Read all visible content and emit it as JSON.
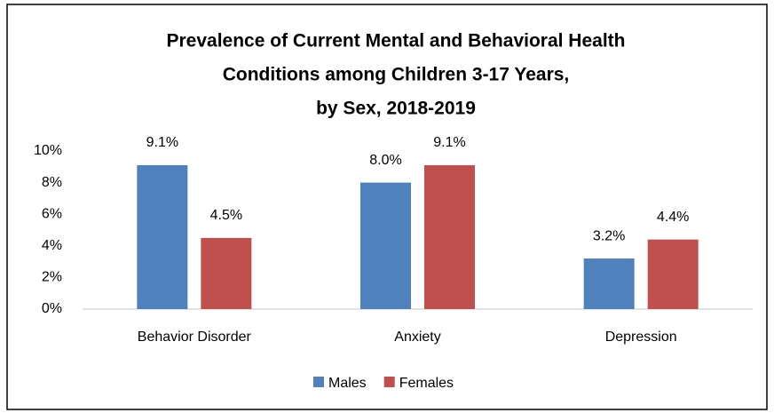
{
  "chart_data": {
    "type": "bar",
    "title": [
      "Prevalence of Current Mental and Behavioral Health",
      "Conditions among Children 3-17 Years,",
      "by Sex, 2018-2019"
    ],
    "categories": [
      "Behavior Disorder",
      "Anxiety",
      "Depression"
    ],
    "series": [
      {
        "name": "Males",
        "color": "#4f81bd",
        "values": [
          9.1,
          8.0,
          3.2
        ],
        "value_labels": [
          "9.1%",
          "8.0%",
          "3.2%"
        ]
      },
      {
        "name": "Females",
        "color": "#c0504d",
        "values": [
          4.5,
          9.1,
          4.4
        ],
        "value_labels": [
          "4.5%",
          "9.1%",
          "4.4%"
        ]
      }
    ],
    "ylim": [
      0,
      10
    ],
    "yticks": [
      {
        "value": 0,
        "label": "0%"
      },
      {
        "value": 2,
        "label": "2%"
      },
      {
        "value": 4,
        "label": "4%"
      },
      {
        "value": 6,
        "label": "6%"
      },
      {
        "value": 8,
        "label": "8%"
      },
      {
        "value": 10,
        "label": "10%"
      }
    ],
    "grid": false,
    "legend": "bottom"
  }
}
